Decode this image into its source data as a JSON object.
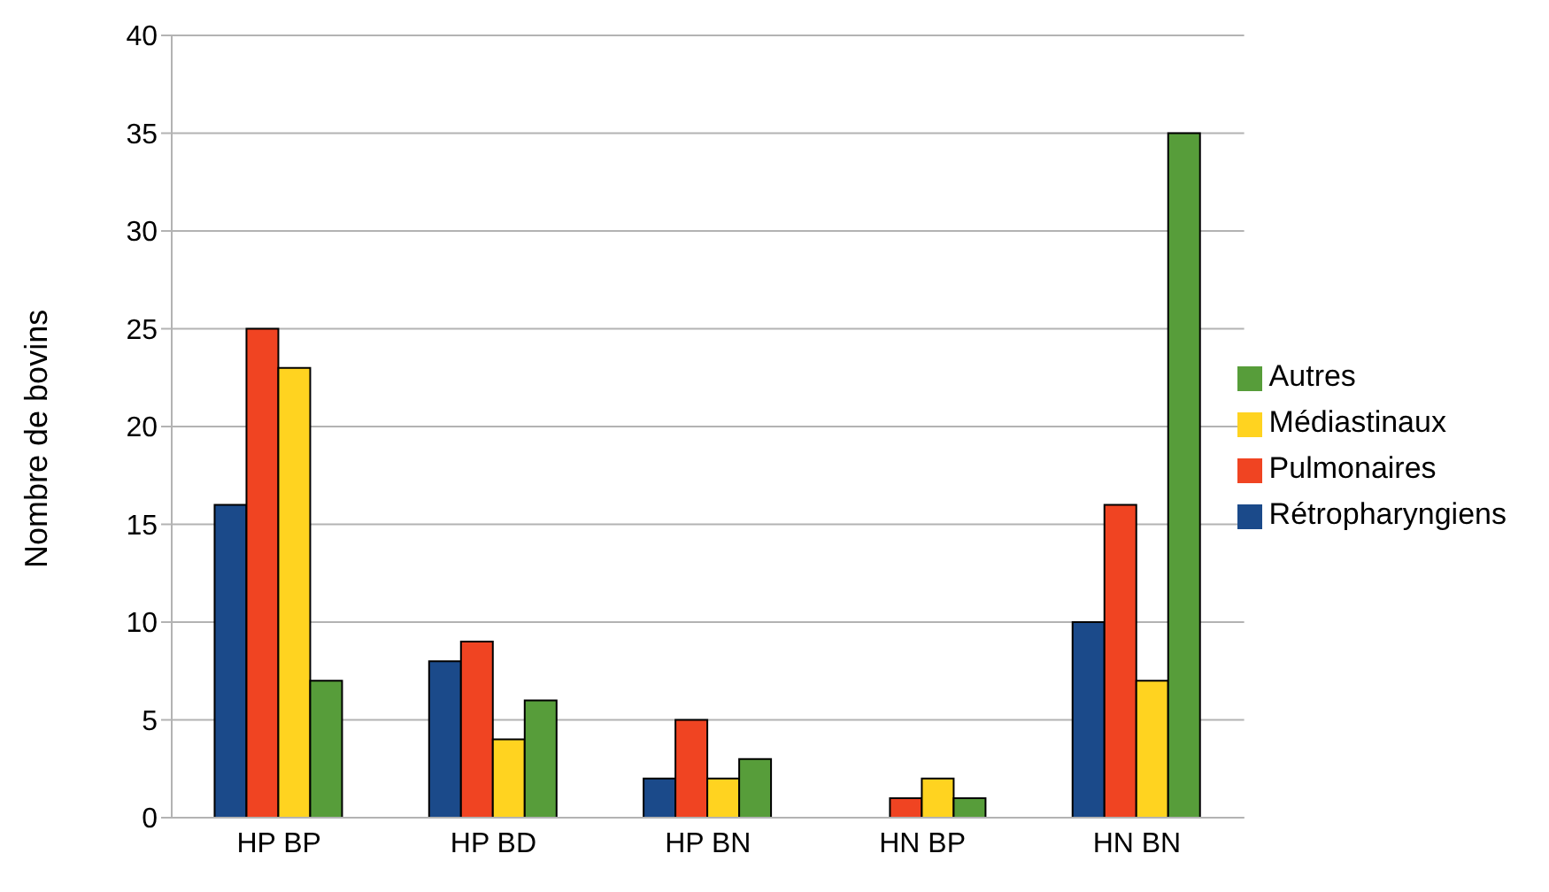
{
  "chart_data": {
    "type": "bar",
    "ylabel": "Nombre de bovins",
    "categories": [
      "HP BP",
      "HP BD",
      "HP BN",
      "HN BP",
      "HN BN"
    ],
    "series": [
      {
        "name": "Rétropharyngiens",
        "color": "#1b4a8a",
        "values": [
          16,
          8,
          2,
          0,
          10
        ]
      },
      {
        "name": "Pulmonaires",
        "color": "#f04422",
        "values": [
          25,
          9,
          5,
          1,
          16
        ]
      },
      {
        "name": "Médiastinaux",
        "color": "#ffd320",
        "values": [
          23,
          4,
          2,
          2,
          7
        ]
      },
      {
        "name": "Autres",
        "color": "#579d3a",
        "values": [
          7,
          6,
          3,
          1,
          35
        ]
      }
    ],
    "ylim": [
      0,
      40
    ],
    "yticks": [
      0,
      5,
      10,
      15,
      20,
      25,
      30,
      35,
      40
    ],
    "grid": "y",
    "legend": "right"
  }
}
